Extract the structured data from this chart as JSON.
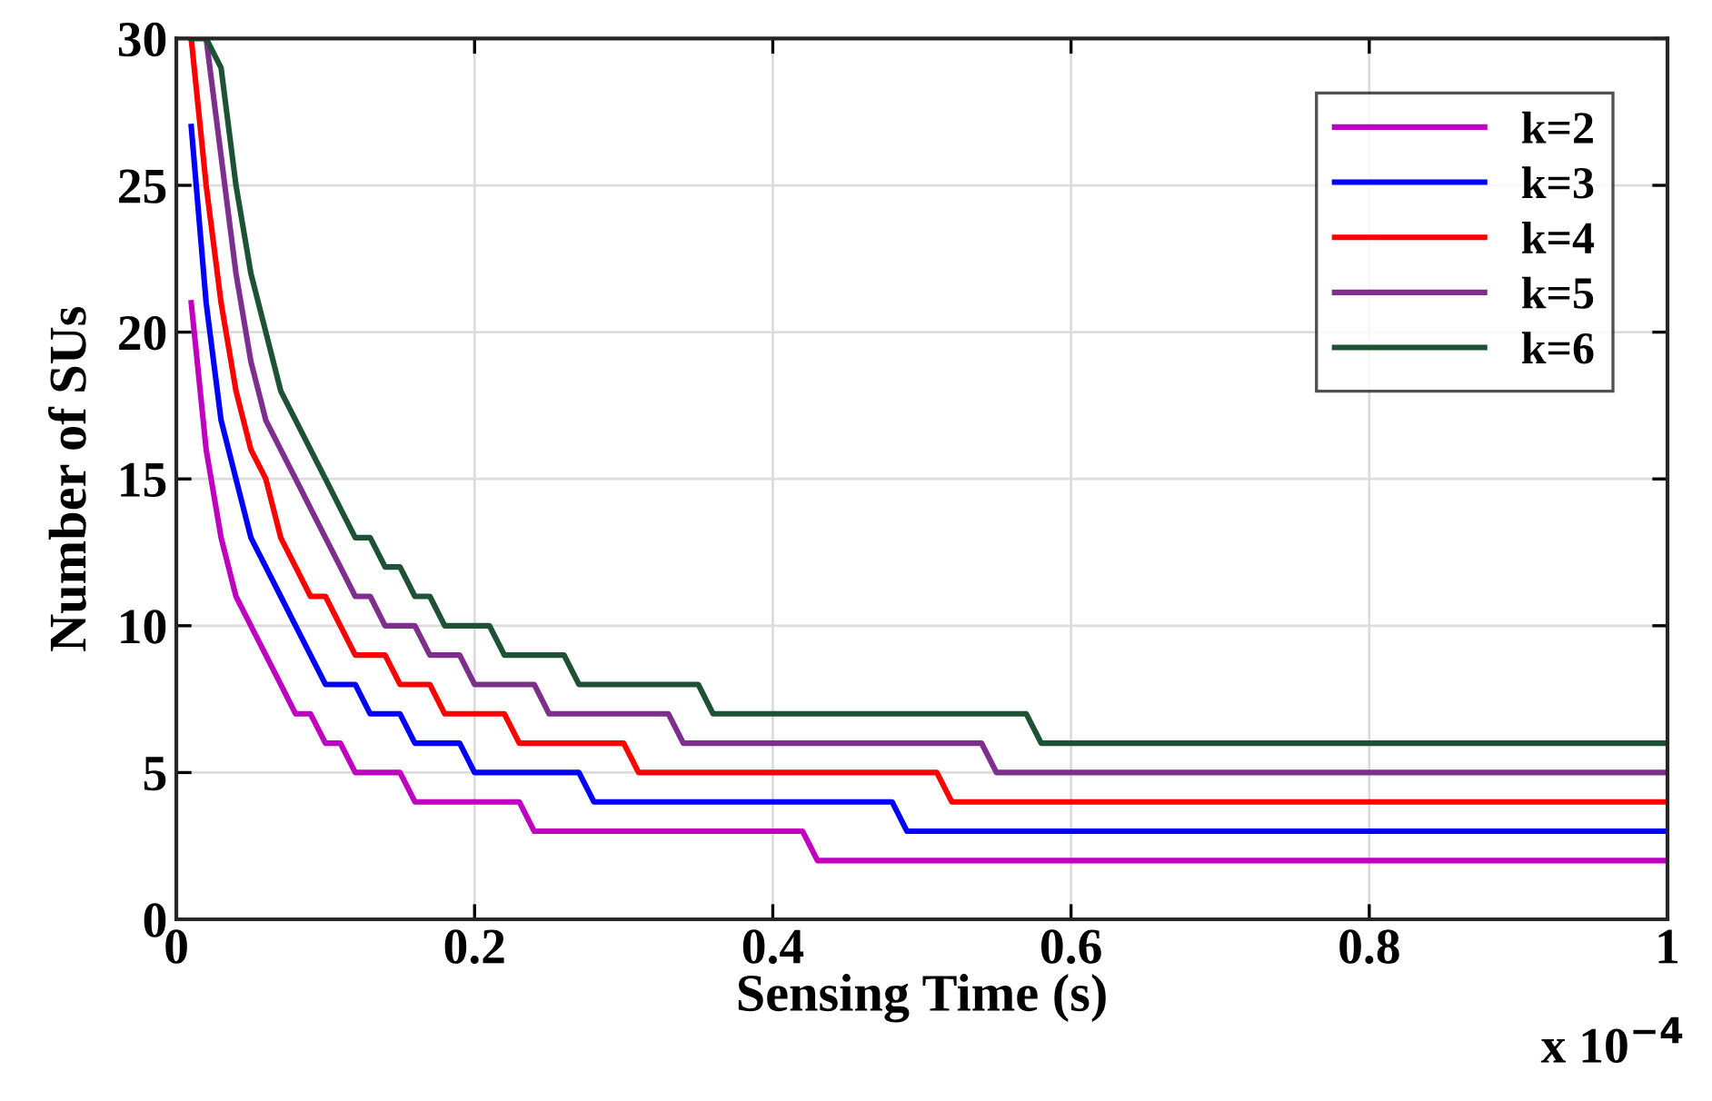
{
  "chart_data": {
    "type": "line",
    "xlabel": "Sensing Time (s)",
    "ylabel": "Number of SUs",
    "annotations": [
      "x 10$^{−4}$"
    ],
    "xlim": [
      0,
      1
    ],
    "xticks": [
      0,
      0.2,
      0.4,
      0.6,
      0.8,
      1
    ],
    "ylim": [
      0,
      30
    ],
    "yticks": [
      0,
      5,
      10,
      15,
      20,
      25,
      30
    ],
    "grid": true,
    "legend": "top right",
    "marker": "none",
    "line_style": "solid",
    "series": [
      {
        "name": "k=2",
        "color": "#c000c0",
        "x": [
          0.01,
          0.02,
          0.03,
          0.04,
          0.05,
          0.06,
          0.07,
          0.08,
          0.09,
          0.1,
          0.11,
          0.12,
          0.15,
          0.16,
          0.23,
          0.24,
          0.42,
          0.43,
          1.0
        ],
        "values": [
          21,
          16,
          13,
          11,
          10,
          9,
          8,
          7,
          7,
          6,
          6,
          5,
          5,
          4,
          4,
          3,
          3,
          2,
          2
        ]
      },
      {
        "name": "k=3",
        "color": "#0000ff",
        "x": [
          0.01,
          0.02,
          0.03,
          0.04,
          0.05,
          0.06,
          0.07,
          0.08,
          0.09,
          0.1,
          0.12,
          0.13,
          0.15,
          0.16,
          0.19,
          0.2,
          0.27,
          0.28,
          0.48,
          0.49,
          1.0
        ],
        "values": [
          27,
          21,
          17,
          15,
          13,
          12,
          11,
          10,
          9,
          8,
          8,
          7,
          7,
          6,
          6,
          5,
          5,
          4,
          4,
          3,
          3
        ]
      },
      {
        "name": "k=4",
        "color": "#ff0000",
        "x": [
          0.01,
          0.02,
          0.03,
          0.04,
          0.05,
          0.06,
          0.07,
          0.08,
          0.09,
          0.1,
          0.11,
          0.12,
          0.14,
          0.15,
          0.17,
          0.18,
          0.22,
          0.23,
          0.3,
          0.31,
          0.51,
          0.52,
          1.0
        ],
        "values": [
          30,
          25,
          21,
          18,
          16,
          15,
          13,
          12,
          11,
          11,
          10,
          9,
          9,
          8,
          8,
          7,
          7,
          6,
          6,
          5,
          5,
          4,
          4
        ]
      },
      {
        "name": "k=5",
        "color": "#7e2f8e",
        "x": [
          0.02,
          0.03,
          0.04,
          0.05,
          0.06,
          0.07,
          0.08,
          0.09,
          0.1,
          0.11,
          0.12,
          0.13,
          0.14,
          0.16,
          0.17,
          0.19,
          0.2,
          0.24,
          0.25,
          0.33,
          0.34,
          0.54,
          0.55,
          1.0
        ],
        "values": [
          30,
          26,
          22,
          19,
          17,
          16,
          15,
          14,
          13,
          12,
          11,
          11,
          10,
          10,
          9,
          9,
          8,
          8,
          7,
          7,
          6,
          6,
          5,
          5
        ]
      },
      {
        "name": "k=6",
        "color": "#1d5234",
        "x": [
          0.01,
          0.02,
          0.03,
          0.04,
          0.05,
          0.06,
          0.07,
          0.08,
          0.09,
          0.1,
          0.11,
          0.12,
          0.13,
          0.14,
          0.15,
          0.16,
          0.17,
          0.18,
          0.21,
          0.22,
          0.26,
          0.27,
          0.35,
          0.36,
          0.57,
          0.58,
          1.0
        ],
        "values": [
          30,
          30,
          29,
          25,
          22,
          20,
          18,
          17,
          16,
          15,
          14,
          13,
          13,
          12,
          12,
          11,
          11,
          10,
          10,
          9,
          9,
          8,
          8,
          7,
          7,
          6,
          6
        ]
      }
    ]
  }
}
